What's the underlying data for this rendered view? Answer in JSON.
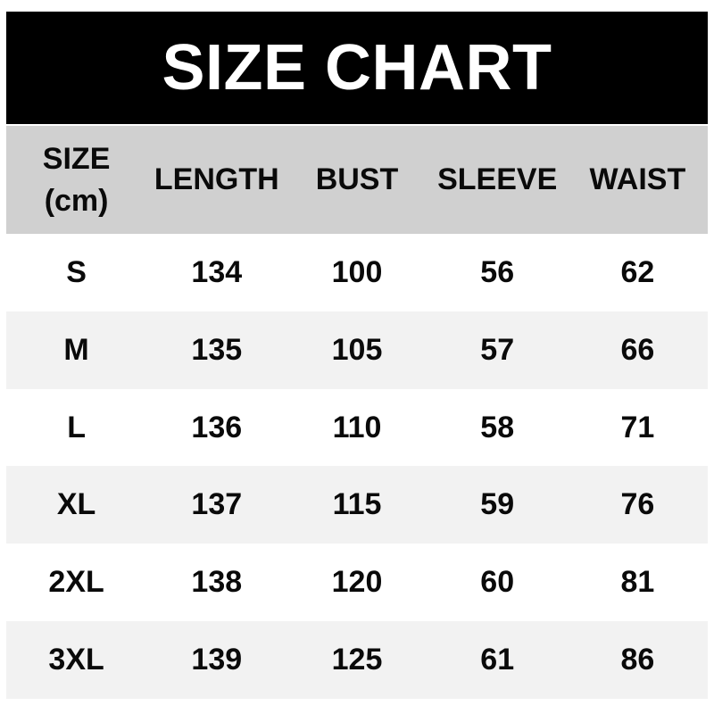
{
  "title": "SIZE CHART",
  "colors": {
    "banner_bg": "#000000",
    "banner_text": "#ffffff",
    "header_bg": "#d0d0d0",
    "stripe_bg": "#f2f2f2",
    "row_bg": "#ffffff",
    "text": "#0a0a0a"
  },
  "table": {
    "header": {
      "size_label": "SIZE",
      "size_unit": "(cm)",
      "columns": [
        "LENGTH",
        "BUST",
        "SLEEVE",
        "WAIST"
      ]
    },
    "rows": [
      {
        "size": "S",
        "length": "134",
        "bust": "100",
        "sleeve": "56",
        "waist": "62"
      },
      {
        "size": "M",
        "length": "135",
        "bust": "105",
        "sleeve": "57",
        "waist": "66"
      },
      {
        "size": "L",
        "length": "136",
        "bust": "110",
        "sleeve": "58",
        "waist": "71"
      },
      {
        "size": "XL",
        "length": "137",
        "bust": "115",
        "sleeve": "59",
        "waist": "76"
      },
      {
        "size": "2XL",
        "length": "138",
        "bust": "120",
        "sleeve": "60",
        "waist": "81"
      },
      {
        "size": "3XL",
        "length": "139",
        "bust": "125",
        "sleeve": "61",
        "waist": "86"
      }
    ]
  },
  "chart_data": {
    "type": "table",
    "title": "SIZE CHART",
    "unit": "cm",
    "columns": [
      "SIZE (cm)",
      "LENGTH",
      "BUST",
      "SLEEVE",
      "WAIST"
    ],
    "rows": [
      [
        "S",
        134,
        100,
        56,
        62
      ],
      [
        "M",
        135,
        105,
        57,
        66
      ],
      [
        "L",
        136,
        110,
        58,
        71
      ],
      [
        "XL",
        137,
        115,
        59,
        76
      ],
      [
        "2XL",
        138,
        120,
        60,
        81
      ],
      [
        "3XL",
        139,
        125,
        61,
        86
      ]
    ]
  }
}
